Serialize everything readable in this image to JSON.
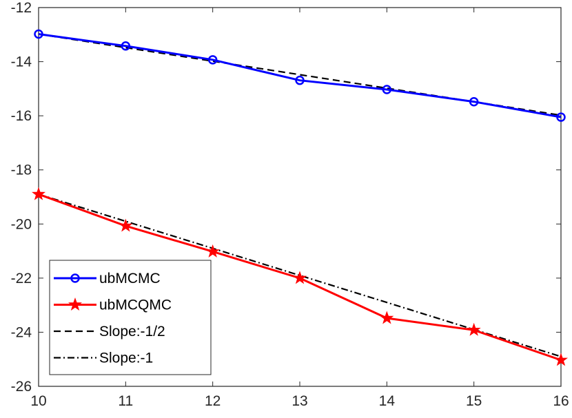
{
  "chart_data": {
    "type": "line",
    "title": "",
    "xlabel": "",
    "ylabel": "",
    "xlim": [
      10,
      16
    ],
    "ylim": [
      -26,
      -12
    ],
    "xticks": [
      10,
      11,
      12,
      13,
      14,
      15,
      16
    ],
    "yticks": [
      -26,
      -24,
      -22,
      -20,
      -18,
      -16,
      -14,
      -12
    ],
    "x": [
      10,
      11,
      12,
      13,
      14,
      15,
      16
    ],
    "series": [
      {
        "name": "ubMCMC",
        "color": "#0000ff",
        "line": "solid",
        "marker": "circle",
        "values": [
          -12.98,
          -13.42,
          -13.93,
          -14.69,
          -15.03,
          -15.48,
          -16.05
        ]
      },
      {
        "name": "ubMCQMC",
        "color": "#ff0000",
        "line": "solid",
        "marker": "star",
        "values": [
          -18.9,
          -20.07,
          -21.02,
          -22.0,
          -23.48,
          -23.92,
          -25.03
        ]
      },
      {
        "name": "Slope:-1/2",
        "color": "#000000",
        "line": "dashed",
        "marker": "none",
        "values": [
          -12.98,
          -13.48,
          -13.98,
          -14.48,
          -14.98,
          -15.48,
          -15.98
        ]
      },
      {
        "name": "Slope:-1",
        "color": "#000000",
        "line": "dashdot",
        "marker": "none",
        "values": [
          -18.9,
          -19.9,
          -20.9,
          -21.9,
          -22.9,
          -23.9,
          -24.9
        ]
      }
    ],
    "grid": false,
    "legend": {
      "position": "bottom-left"
    }
  }
}
